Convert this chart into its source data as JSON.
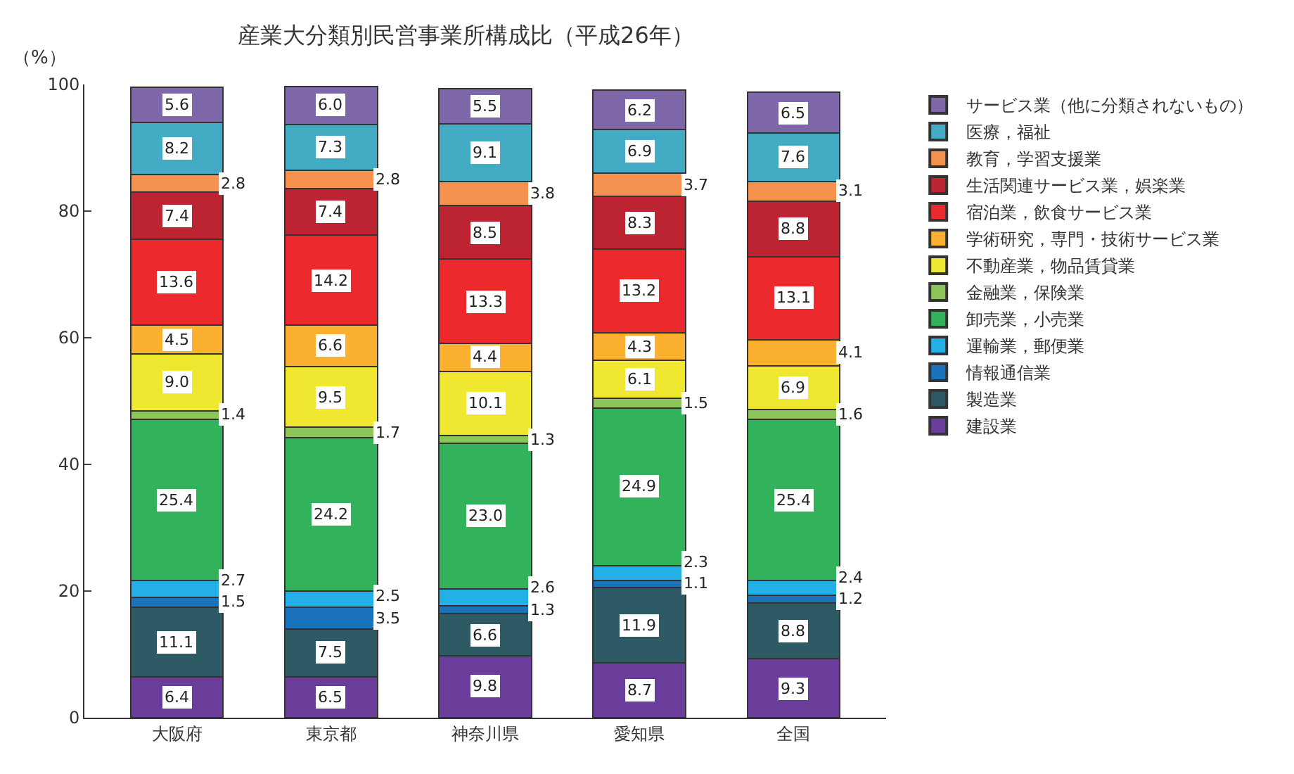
{
  "chart_data": {
    "type": "bar",
    "title": "産業大分類別民営事業所構成比（平成26年）",
    "ylabel": "（%）",
    "categories": [
      "大阪府",
      "東京都",
      "神奈川県",
      "愛知県",
      "全国"
    ],
    "stacked": true,
    "ylim": [
      0,
      100
    ],
    "yticks": [
      0,
      20,
      40,
      60,
      80,
      100
    ],
    "grid": false,
    "legend": "right",
    "series": [
      {
        "name": "建設業",
        "color": "#6a3d9a",
        "values": [
          6.4,
          6.5,
          9.8,
          8.7,
          9.3
        ],
        "value_labels": [
          "6.4",
          "6.5",
          "9.8",
          "8.7",
          "9.3"
        ]
      },
      {
        "name": "製造業",
        "color": "#2e5a66",
        "values": [
          11.1,
          7.5,
          6.6,
          11.9,
          8.8
        ],
        "value_labels": [
          "11.1",
          "7.5",
          "6.6",
          "11.9",
          "8.8"
        ]
      },
      {
        "name": "情報通信業",
        "color": "#1a72bb",
        "values": [
          1.5,
          3.5,
          1.3,
          1.1,
          1.2
        ],
        "value_labels": [
          "1.5",
          "3.5",
          "1.3",
          "1.1",
          "1.2"
        ]
      },
      {
        "name": "運輸業，郵便業",
        "color": "#22b0e6",
        "values": [
          2.7,
          2.5,
          2.6,
          2.3,
          2.4
        ],
        "value_labels": [
          "2.7",
          "2.5",
          "2.6",
          "2.3",
          "2.4"
        ]
      },
      {
        "name": "卸売業，小売業",
        "color": "#33b25c",
        "values": [
          25.4,
          24.2,
          23.0,
          24.9,
          25.4
        ],
        "value_labels": [
          "25.4",
          "24.2",
          "23.0",
          "24.9",
          "25.4"
        ]
      },
      {
        "name": "金融業，保険業",
        "color": "#8dc55a",
        "values": [
          1.4,
          1.7,
          1.3,
          1.5,
          1.6
        ],
        "value_labels": [
          "1.4",
          "1.7",
          "1.3",
          "1.5",
          "1.6"
        ]
      },
      {
        "name": "不動産業，物品賃貸業",
        "color": "#f0e830",
        "values": [
          9.0,
          9.5,
          10.1,
          6.1,
          6.9
        ],
        "value_labels": [
          "9.0",
          "9.5",
          "10.1",
          "6.1",
          "6.9"
        ]
      },
      {
        "name": "学術研究，専門・技術サービス業",
        "color": "#fbb030",
        "values": [
          4.5,
          6.6,
          4.4,
          4.3,
          4.1
        ],
        "value_labels": [
          "4.5",
          "6.6",
          "4.4",
          "4.3",
          "4.1"
        ]
      },
      {
        "name": "宿泊業，飲食サービス業",
        "color": "#ec2a2e",
        "values": [
          13.6,
          14.2,
          13.3,
          13.2,
          13.1
        ],
        "value_labels": [
          "13.6",
          "14.2",
          "13.3",
          "13.2",
          "13.1"
        ]
      },
      {
        "name": "生活関連サービス業，娯楽業",
        "color": "#bb2430",
        "values": [
          7.4,
          7.4,
          8.5,
          8.3,
          8.8
        ],
        "value_labels": [
          "7.4",
          "7.4",
          "8.5",
          "8.3",
          "8.8"
        ]
      },
      {
        "name": "教育，学習支援業",
        "color": "#f5924f",
        "values": [
          2.8,
          2.8,
          3.8,
          3.7,
          3.1
        ],
        "value_labels": [
          "2.8",
          "2.8",
          "3.8",
          "3.7",
          "3.1"
        ]
      },
      {
        "name": "医療，福祉",
        "color": "#44abc5",
        "values": [
          8.2,
          7.3,
          9.1,
          6.9,
          7.6
        ],
        "value_labels": [
          "8.2",
          "7.3",
          "9.1",
          "6.9",
          "7.6"
        ]
      },
      {
        "name": "サービス業（他に分類されないもの）",
        "color": "#7f68aa",
        "values": [
          5.6,
          6.0,
          5.5,
          6.2,
          6.5
        ],
        "value_labels": [
          "5.6",
          "6.0",
          "5.5",
          "6.2",
          "6.5"
        ]
      }
    ]
  }
}
